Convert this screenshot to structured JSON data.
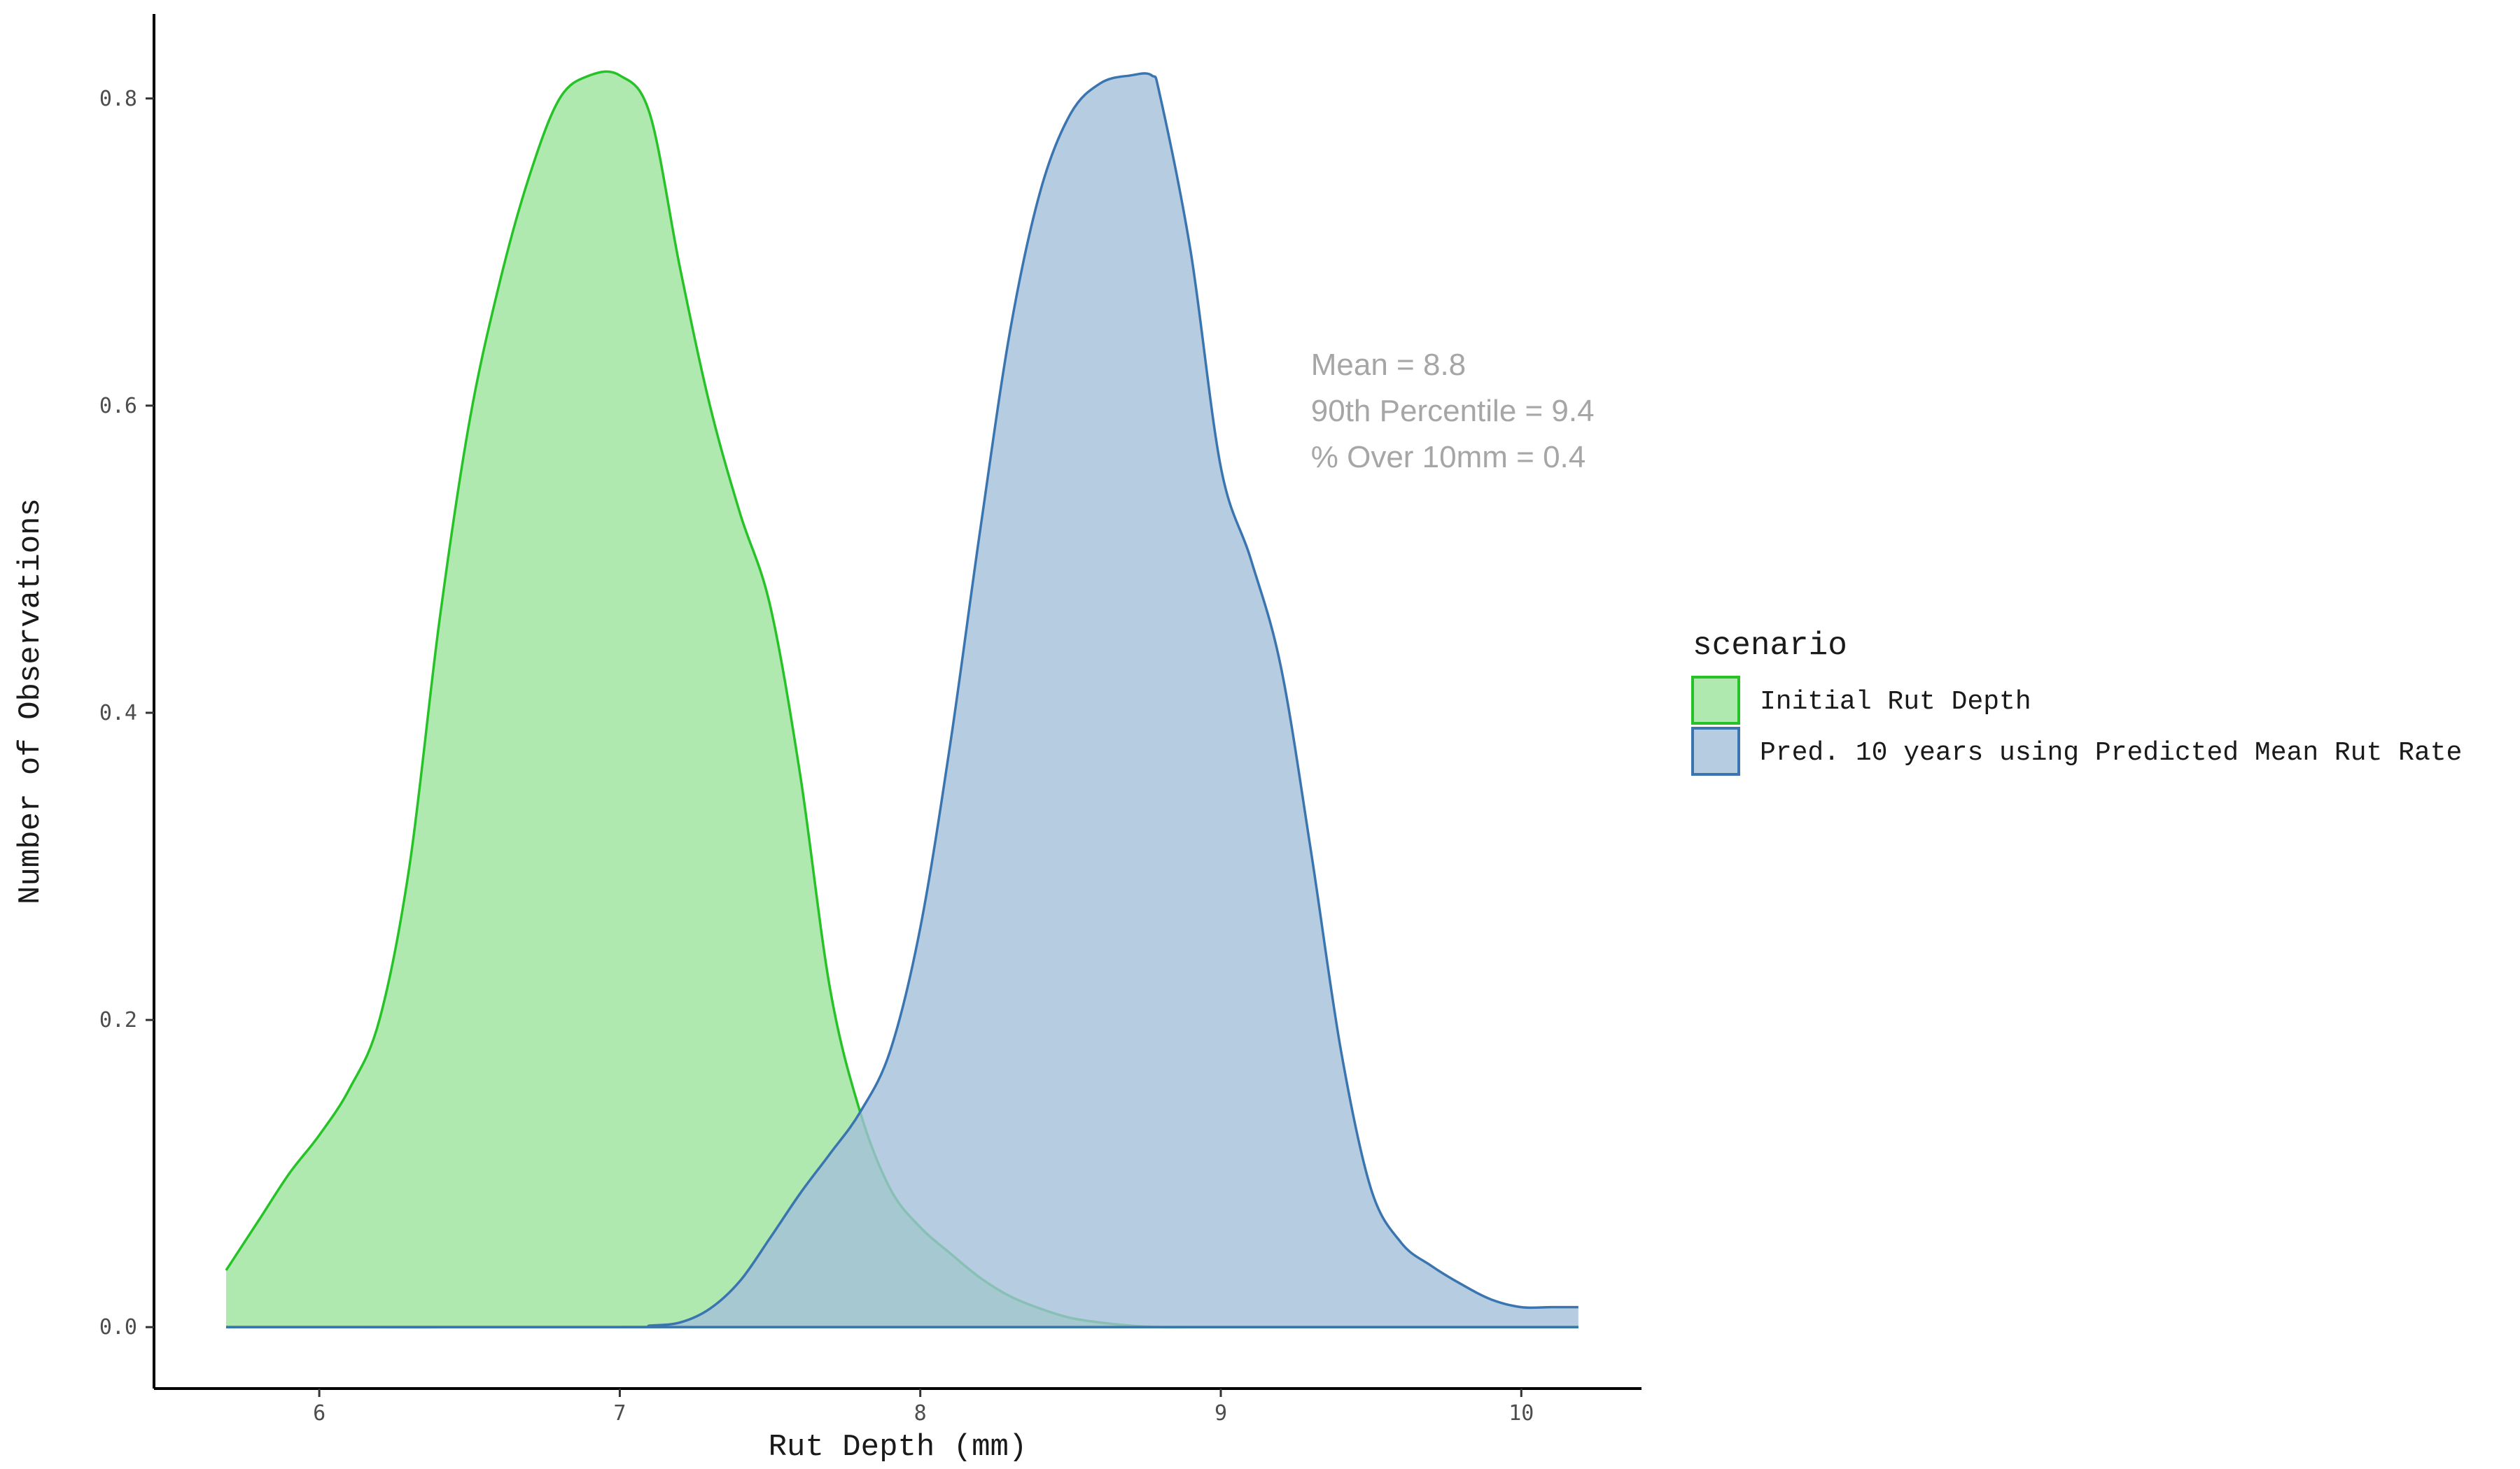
{
  "chart_data": {
    "type": "area",
    "xlabel": "Rut Depth (mm)",
    "ylabel": "Number of Observations",
    "xlim": [
      5.45,
      10.4
    ],
    "ylim": [
      -0.04,
      0.855
    ],
    "x_ticks": [
      6,
      7,
      8,
      9,
      10
    ],
    "y_ticks": [
      0.0,
      0.2,
      0.4,
      0.6,
      0.8
    ],
    "y_tick_labels": [
      "0.0",
      "0.2",
      "0.4",
      "0.6",
      "0.8"
    ],
    "grid": false,
    "legend": {
      "title": "scenario",
      "placement": "right",
      "entries": [
        "Initial Rut Depth",
        "Pred. 10 years using Predicted Mean Rut Rate"
      ]
    },
    "series": [
      {
        "name": "Initial Rut Depth",
        "fill": "#9be49b",
        "stroke": "#27c227",
        "x": [
          5.69,
          5.8,
          5.9,
          6.0,
          6.1,
          6.2,
          6.3,
          6.4,
          6.5,
          6.6,
          6.7,
          6.8,
          6.9,
          7.0,
          7.1,
          7.2,
          7.3,
          7.4,
          7.5,
          7.6,
          7.7,
          7.8,
          7.9,
          8.0,
          8.1,
          8.2,
          8.3,
          8.4,
          8.5,
          8.6,
          8.7,
          8.8,
          9.0,
          9.5,
          10.19
        ],
        "y": [
          0.037,
          0.07,
          0.1,
          0.125,
          0.155,
          0.2,
          0.3,
          0.46,
          0.59,
          0.68,
          0.75,
          0.8,
          0.815,
          0.815,
          0.79,
          0.69,
          0.6,
          0.53,
          0.47,
          0.36,
          0.22,
          0.14,
          0.09,
          0.065,
          0.048,
          0.032,
          0.02,
          0.012,
          0.006,
          0.003,
          0.001,
          0.0,
          0.0,
          0.0,
          0.0
        ]
      },
      {
        "name": "Pred. 10 years using Predicted Mean Rut Rate",
        "fill": "#a3bfd9",
        "stroke": "#3a75b0",
        "x": [
          5.69,
          7.0,
          7.1,
          7.2,
          7.3,
          7.4,
          7.5,
          7.6,
          7.7,
          7.8,
          7.9,
          8.0,
          8.1,
          8.2,
          8.3,
          8.4,
          8.5,
          8.6,
          8.7,
          8.77,
          8.8,
          8.9,
          9.0,
          9.1,
          9.2,
          9.3,
          9.4,
          9.5,
          9.6,
          9.7,
          9.8,
          9.9,
          10.0,
          10.1,
          10.19
        ],
        "y": [
          0.0,
          0.0,
          0.001,
          0.003,
          0.012,
          0.03,
          0.058,
          0.087,
          0.113,
          0.14,
          0.18,
          0.26,
          0.38,
          0.52,
          0.65,
          0.74,
          0.79,
          0.81,
          0.815,
          0.815,
          0.8,
          0.7,
          0.56,
          0.5,
          0.43,
          0.31,
          0.18,
          0.09,
          0.055,
          0.04,
          0.028,
          0.018,
          0.013,
          0.013,
          0.013
        ]
      }
    ],
    "annotations": [
      "Mean = 8.8",
      "90th Percentile = 9.4",
      "% Over 10mm = 0.4"
    ]
  }
}
